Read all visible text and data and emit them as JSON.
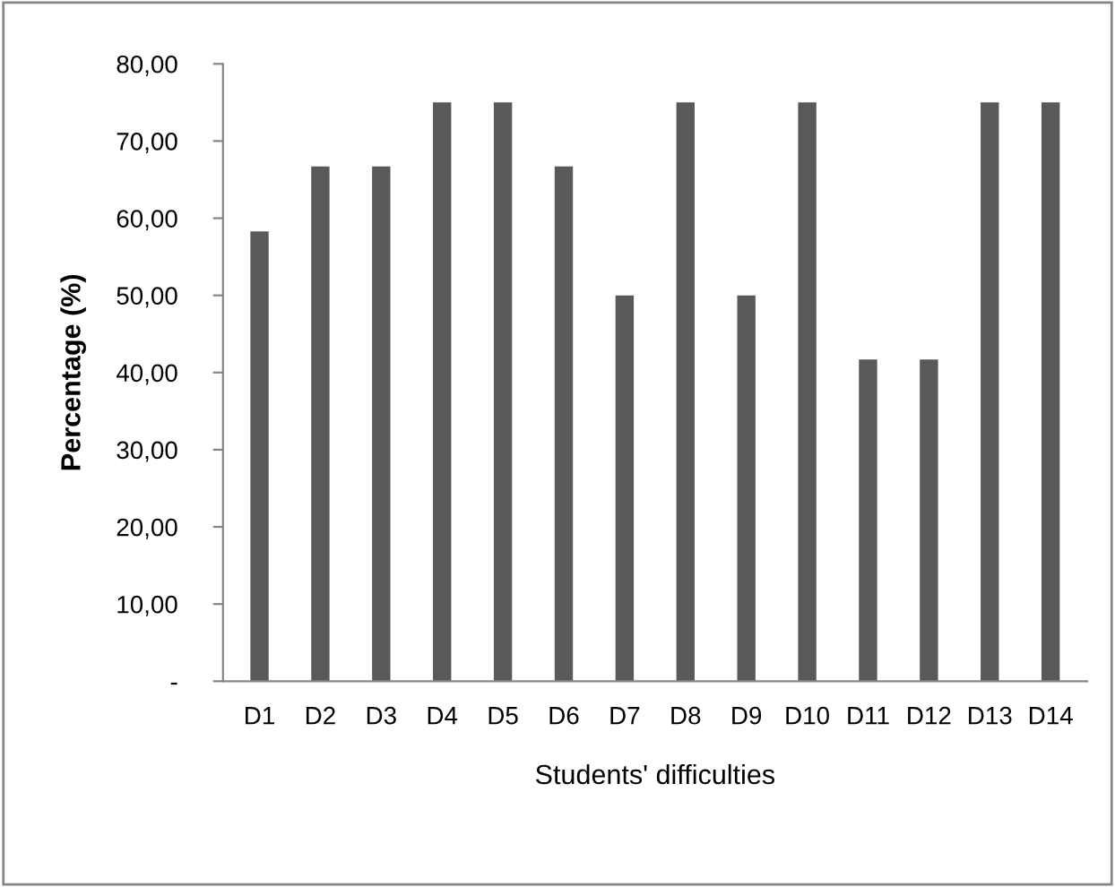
{
  "chart_data": {
    "type": "bar",
    "xlabel": "Students' difficulties",
    "ylabel": "Percentage (%)",
    "categories": [
      "D1",
      "D2",
      "D3",
      "D4",
      "D5",
      "D6",
      "D7",
      "D8",
      "D9",
      "D10",
      "D11",
      "D12",
      "D13",
      "D14"
    ],
    "values": [
      58.3,
      66.7,
      66.7,
      75,
      75,
      66.7,
      50,
      75,
      50,
      75,
      41.7,
      41.7,
      75,
      75
    ],
    "color": "#595959",
    "ylim": [
      0,
      80
    ],
    "yticks": [
      {
        "value": 0,
        "label": "-"
      },
      {
        "value": 10,
        "label": "10,00"
      },
      {
        "value": 20,
        "label": "20,00"
      },
      {
        "value": 30,
        "label": "30,00"
      },
      {
        "value": 40,
        "label": "40,00"
      },
      {
        "value": 50,
        "label": "50,00"
      },
      {
        "value": 60,
        "label": "60,00"
      },
      {
        "value": 70,
        "label": "70,00"
      },
      {
        "value": 80,
        "label": "80,00"
      }
    ],
    "grid": false,
    "legend": false
  }
}
